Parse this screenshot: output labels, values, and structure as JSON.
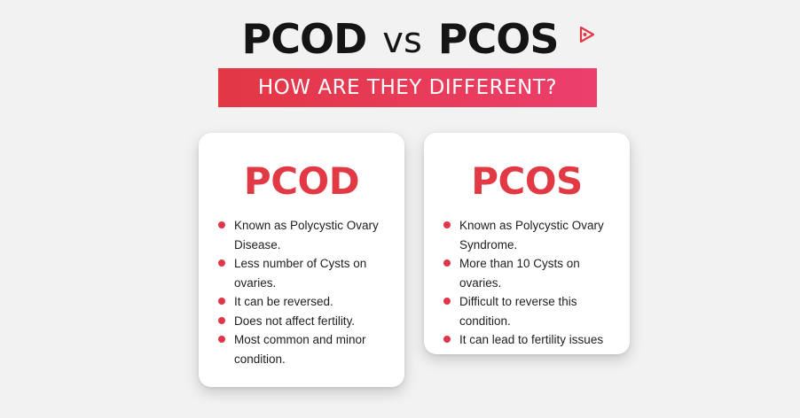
{
  "header": {
    "left_term": "PCOD",
    "vs_text": "vs",
    "right_term": "PCOS",
    "subtitle": "HOW ARE THEY DIFFERENT?"
  },
  "cards": [
    {
      "title": "PCOD",
      "points": [
        "Known as Polycystic Ovary Disease.",
        "Less number of Cysts on ovaries.",
        "It can be reversed.",
        "Does not affect fertility.",
        "Most common and minor condition."
      ]
    },
    {
      "title": "PCOS",
      "points": [
        "Known as Polycystic Ovary Syndrome.",
        "More than 10 Cysts on ovaries.",
        "Difficult to reverse this condition.",
        "It can lead to fertility issues"
      ]
    }
  ],
  "colors": {
    "accent": "#e23a44",
    "banner_start": "#e23744",
    "banner_end": "#ec3f6c",
    "background": "#f3f2f3",
    "title_text": "#151515"
  },
  "icons": {
    "brand": "play-icon",
    "bullet": "bullet-dot-icon"
  }
}
